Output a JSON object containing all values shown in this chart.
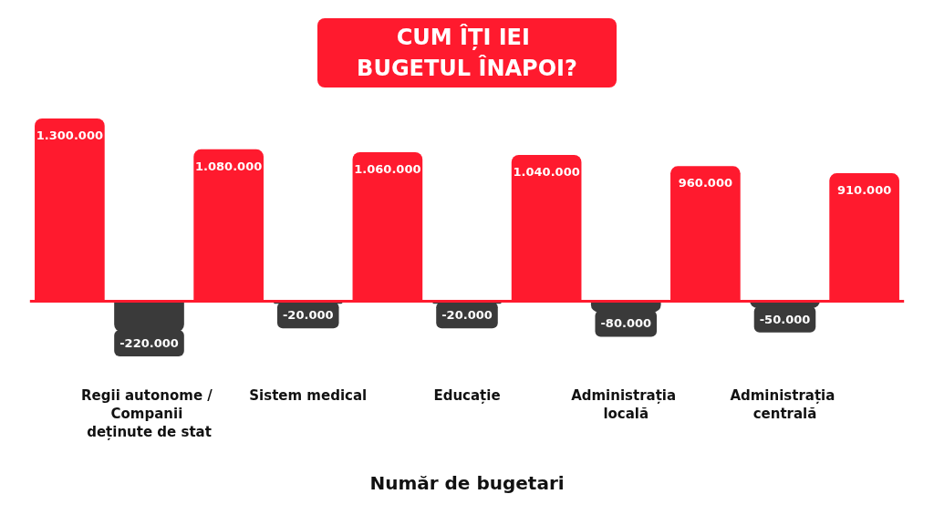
{
  "chart_data": {
    "type": "bar",
    "title": "CUM ÎȚI IEI BUGETUL ÎNAPOI?",
    "xlabel": "Număr de bugetari",
    "categories": [
      null,
      "Regii autonome / Companii deținute de stat",
      null,
      "Sistem medical",
      null,
      "Educație",
      null,
      "Administrația locală",
      null,
      "Administrația centrală",
      null
    ],
    "stacked": true,
    "series": [
      {
        "color": "#ff1a2e",
        "values": [
          1300000,
          null,
          1080000,
          null,
          1060000,
          null,
          1040000,
          null,
          960000,
          null,
          910000
        ],
        "value_labels": [
          "1.300.000",
          null,
          "1.080.000",
          null,
          "1.060.000",
          null,
          "1.040.000",
          null,
          "960.000",
          null,
          "910.000"
        ]
      },
      {
        "color": "#3a3a3a",
        "values": [
          null,
          -220000,
          null,
          -20000,
          null,
          -20000,
          null,
          -80000,
          null,
          -50000,
          null
        ],
        "value_labels": [
          null,
          "-220.000",
          null,
          "-20.000",
          null,
          "-20.000",
          null,
          "-80.000",
          null,
          "-50.000",
          null
        ]
      }
    ],
    "ref_lines": [
      {
        "axis": "y",
        "value": 0,
        "color": "#ff1a2e"
      }
    ],
    "tick_labels": "x",
    "grid": false
  }
}
